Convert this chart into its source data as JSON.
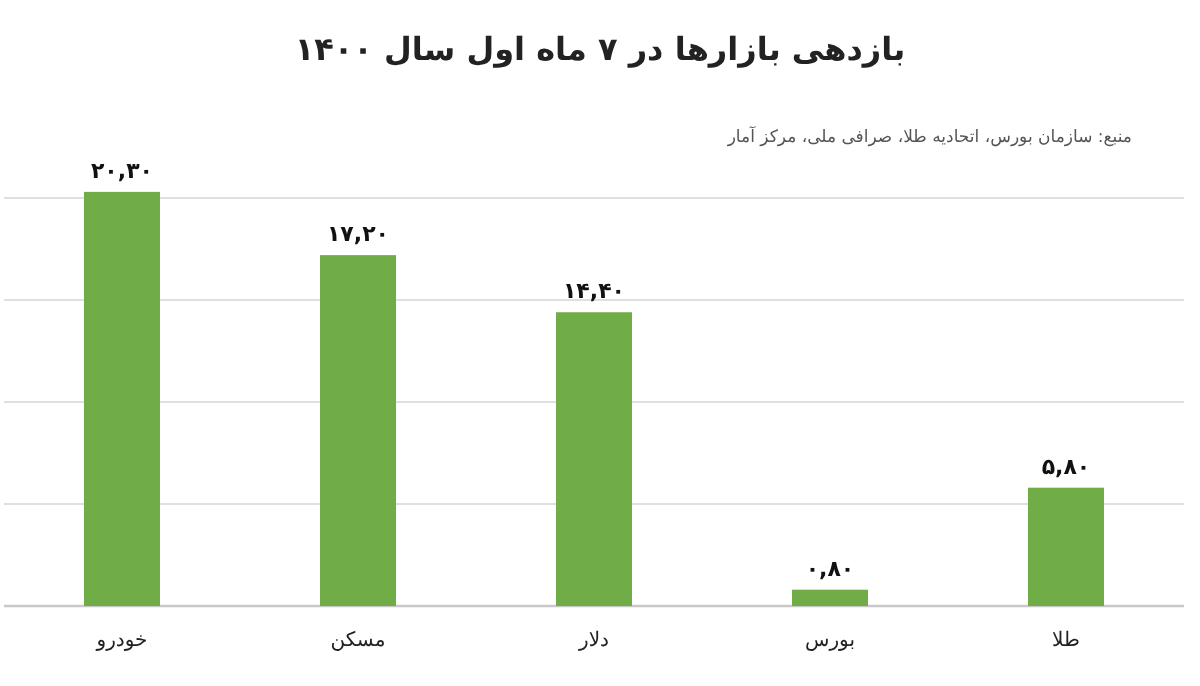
{
  "chart_data": {
    "type": "bar",
    "title": "بازدهی بازارها در ۷ ماه اول سال ۱۴۰۰",
    "annotations": [
      "منبع: سازمان بورس، اتحادیه طلا، صرافی ملی، مرکز آمار"
    ],
    "categories": [
      "خودرو",
      "مسکن",
      "دلار",
      "بورس",
      "طلا"
    ],
    "values": [
      20.3,
      17.2,
      14.4,
      0.8,
      5.8
    ],
    "value_labels": [
      "۲۰,۳۰",
      "۱۷,۲۰",
      "۱۴,۴۰",
      "۰,۸۰",
      "۵,۸۰"
    ],
    "color": "#70ad47",
    "yticks": [
      {
        "value": 0,
        "label": null
      },
      {
        "value": 5,
        "label": null
      },
      {
        "value": 10,
        "label": null
      },
      {
        "value": 15,
        "label": null
      },
      {
        "value": 20,
        "label": null
      }
    ],
    "tick_labels": "x",
    "grid": "y"
  }
}
